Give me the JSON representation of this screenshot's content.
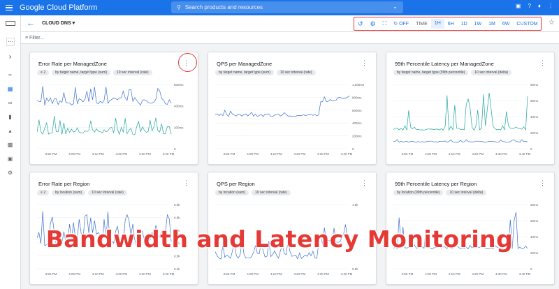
{
  "topbar": {
    "brand": "Google Cloud Platform",
    "search_placeholder": "Search products and resources"
  },
  "toolbar": {
    "dashboard": "CLOUD DNS",
    "time_controls": [
      "OFF",
      "TIME",
      "1H",
      "6H",
      "1D",
      "1W",
      "1M",
      "6W",
      "CUSTOM"
    ],
    "selected_range": "1H"
  },
  "filter": {
    "placeholder": "Filter..."
  },
  "cards": [
    {
      "title": "Error Rate per ManagedZone",
      "chips": [
        "2",
        "by target name, target type (sum)",
        "10 sec interval (rate)"
      ],
      "yticks": [
        "600ms",
        "400ms",
        "200ms",
        "0"
      ],
      "xticks": [
        "3:50 PM",
        "4:00 PM",
        "4:10 PM",
        "4:20 PM",
        "4:30 PM",
        "4:40 PM"
      ]
    },
    {
      "title": "QPS per ManagedZone",
      "chips": [
        "by target name, target type (sum)",
        "10 sec interval (rate)"
      ],
      "yticks": [
        "1,000ms",
        "800ms",
        "600ms",
        "400ms",
        "200ms",
        "0"
      ],
      "xticks": [
        "3:50 PM",
        "4:00 PM",
        "4:10 PM",
        "4:20 PM",
        "4:30 PM",
        "4:40 PM"
      ]
    },
    {
      "title": "99th Percentile Latency per ManagedZone",
      "chips": [
        "by target name, target type (99th percentile)",
        "10 sec interval (delta)"
      ],
      "yticks": [
        "80ms",
        "60ms",
        "40ms",
        "20ms",
        "0"
      ],
      "xticks": [
        "3:50 PM",
        "4:00 PM",
        "4:10 PM",
        "4:20 PM",
        "4:30 PM",
        "4:40 PM"
      ]
    },
    {
      "title": "Error Rate per Region",
      "chips": [
        "2",
        "by location (sum)",
        "10 sec interval (rate)"
      ],
      "yticks": [
        "0.9k",
        "0.8k",
        "0.7k",
        "0.6k",
        "0.5k",
        "0.4k"
      ],
      "xticks": [
        "3:50 PM",
        "4:00 PM",
        "4:10 PM",
        "4:20 PM",
        "4:30 PM",
        "4:40 PM"
      ]
    },
    {
      "title": "QPS per Region",
      "chips": [
        "by location (sum)",
        "10 sec interval (rate)"
      ],
      "yticks": [
        "1.5k",
        "1k",
        "0.5k"
      ],
      "xticks": [
        "3:50 PM",
        "4:00 PM",
        "4:10 PM",
        "4:20 PM",
        "4:30 PM",
        "4:40 PM"
      ]
    },
    {
      "title": "99th Percentile Latency per Region",
      "chips": [
        "by location (99th percentile)",
        "10 sec interval (delta)"
      ],
      "yticks": [
        "80ms",
        "60ms",
        "40ms",
        "20ms",
        "0"
      ],
      "xticks": [
        "3:50 PM",
        "4:00 PM",
        "4:10 PM",
        "4:20 PM",
        "4:30 PM",
        "4:40 PM"
      ]
    }
  ],
  "overlay_caption": "Bandwidth and Latency Monitoring",
  "colors": {
    "primary": "#1a73e8",
    "highlight": "#e53935",
    "series_blue": "#3b6fcf",
    "series_teal": "#20a6a0"
  }
}
